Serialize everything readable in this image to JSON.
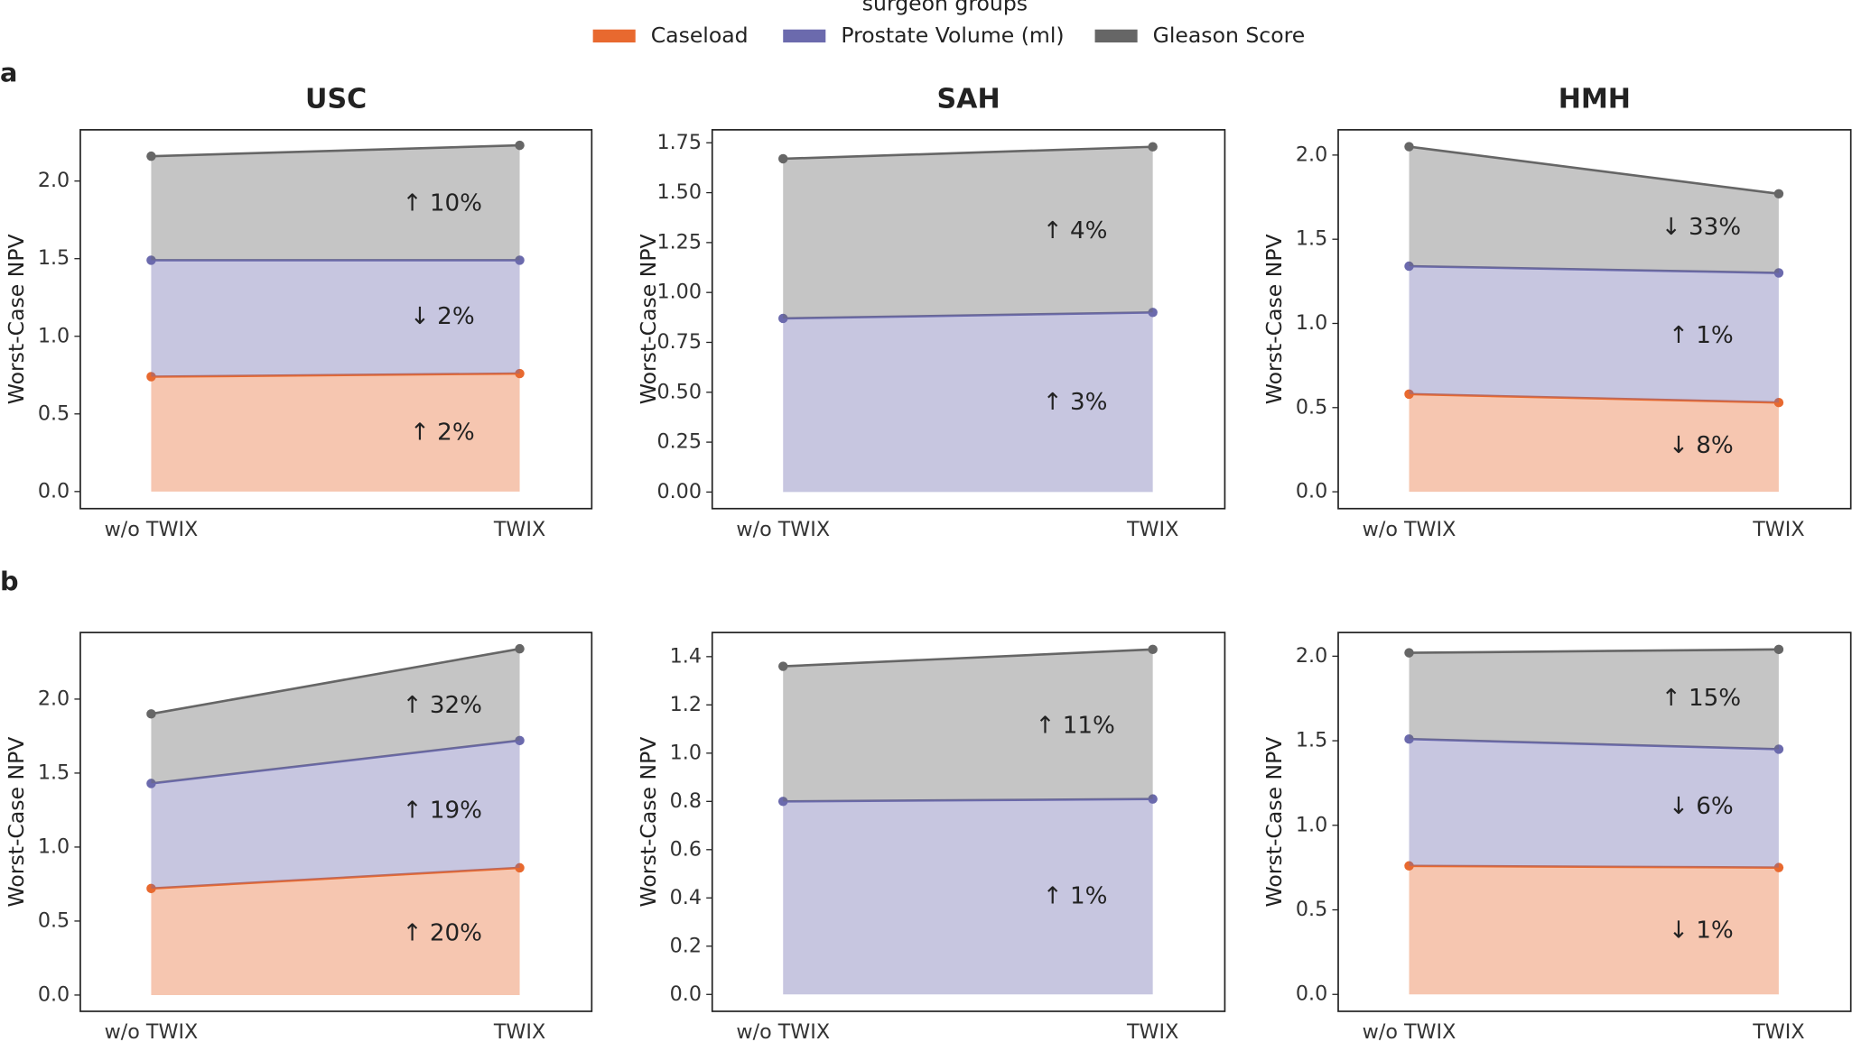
{
  "legend_title": "surgeon groups",
  "panel_labels": [
    "a",
    "b"
  ],
  "chart_data": [
    {
      "type": "area",
      "title": "USC",
      "ylabel": "Worst-Case NPV",
      "categories": [
        "w/o TWIX",
        "TWIX"
      ],
      "ylim": [
        -0.11,
        2.33
      ],
      "yticks": [
        {
          "value": 0,
          "label": "0.0"
        },
        0.5,
        {
          "value": 1,
          "label": "1.0"
        },
        1.5,
        {
          "value": 2,
          "label": "2.0"
        }
      ],
      "series": [
        {
          "name": "Caseload",
          "color": "#e8692f",
          "values": [
            0.74,
            0.76
          ],
          "label": "↑ 2%"
        },
        {
          "name": "Prostate Volume (ml)",
          "color": "#6b6aad",
          "values": [
            0.75,
            0.73
          ],
          "label": "↓ 2%"
        },
        {
          "name": "Gleason Score",
          "color": "#666666",
          "values": [
            0.67,
            0.74
          ],
          "label": "↑ 10%"
        }
      ]
    },
    {
      "type": "area",
      "title": "SAH",
      "ylabel": "Worst-Case NPV",
      "categories": [
        "w/o TWIX",
        "TWIX"
      ],
      "ylim": [
        -0.083,
        1.815
      ],
      "yticks": [
        {
          "value": 0,
          "label": "0.00"
        },
        0.25,
        {
          "value": 0.5,
          "label": "0.50"
        },
        0.75,
        {
          "value": 1,
          "label": "1.00"
        },
        1.25,
        {
          "value": 1.5,
          "label": "1.50"
        },
        1.75
      ],
      "series": [
        {
          "name": "Prostate Volume (ml)",
          "color": "#6b6aad",
          "values": [
            0.87,
            0.9
          ],
          "label": "↑ 3%"
        },
        {
          "name": "Gleason Score",
          "color": "#666666",
          "values": [
            0.8,
            0.83
          ],
          "label": "↑ 4%"
        }
      ]
    },
    {
      "type": "area",
      "title": "HMH",
      "ylabel": "Worst-Case NPV",
      "categories": [
        "w/o TWIX",
        "TWIX"
      ],
      "ylim": [
        -0.1,
        2.15
      ],
      "yticks": [
        {
          "value": 0,
          "label": "0.0"
        },
        0.5,
        {
          "value": 1,
          "label": "1.0"
        },
        1.5,
        {
          "value": 2,
          "label": "2.0"
        }
      ],
      "series": [
        {
          "name": "Caseload",
          "color": "#e8692f",
          "values": [
            0.58,
            0.53
          ],
          "label": "↓ 8%"
        },
        {
          "name": "Prostate Volume (ml)",
          "color": "#6b6aad",
          "values": [
            0.76,
            0.77
          ],
          "label": "↑ 1%"
        },
        {
          "name": "Gleason Score",
          "color": "#666666",
          "values": [
            0.71,
            0.47
          ],
          "label": "↓ 33%"
        }
      ]
    },
    {
      "type": "area",
      "ylabel": "Worst-Case NPV",
      "categories": [
        "w/o TWIX",
        "TWIX"
      ],
      "ylim": [
        -0.11,
        2.45
      ],
      "yticks": [
        {
          "value": 0,
          "label": "0.0"
        },
        0.5,
        {
          "value": 1,
          "label": "1.0"
        },
        1.5,
        {
          "value": 2,
          "label": "2.0"
        }
      ],
      "series": [
        {
          "name": "Caseload",
          "color": "#e8692f",
          "values": [
            0.72,
            0.86
          ],
          "label": "↑ 20%"
        },
        {
          "name": "Prostate Volume (ml)",
          "color": "#6b6aad",
          "values": [
            0.71,
            0.86
          ],
          "label": "↑ 19%"
        },
        {
          "name": "Gleason Score",
          "color": "#666666",
          "values": [
            0.47,
            0.62
          ],
          "label": "↑ 32%"
        }
      ]
    },
    {
      "type": "area",
      "ylabel": "Worst-Case NPV",
      "categories": [
        "w/o TWIX",
        "TWIX"
      ],
      "ylim": [
        -0.07,
        1.5
      ],
      "yticks": [
        {
          "value": 0,
          "label": "0.0"
        },
        0.2,
        0.4,
        0.6,
        0.8,
        {
          "value": 1,
          "label": "1.0"
        },
        1.2,
        1.4
      ],
      "series": [
        {
          "name": "Prostate Volume (ml)",
          "color": "#6b6aad",
          "values": [
            0.8,
            0.81
          ],
          "label": "↑ 1%"
        },
        {
          "name": "Gleason Score",
          "color": "#666666",
          "values": [
            0.56,
            0.62
          ],
          "label": "↑ 11%"
        }
      ]
    },
    {
      "type": "area",
      "ylabel": "Worst-Case NPV",
      "categories": [
        "w/o TWIX",
        "TWIX"
      ],
      "ylim": [
        -0.1,
        2.14
      ],
      "yticks": [
        {
          "value": 0,
          "label": "0.0"
        },
        0.5,
        {
          "value": 1,
          "label": "1.0"
        },
        1.5,
        {
          "value": 2,
          "label": "2.0"
        }
      ],
      "series": [
        {
          "name": "Caseload",
          "color": "#e8692f",
          "values": [
            0.76,
            0.75
          ],
          "label": "↓ 1%"
        },
        {
          "name": "Prostate Volume (ml)",
          "color": "#6b6aad",
          "values": [
            0.75,
            0.7
          ],
          "label": "↓ 6%"
        },
        {
          "name": "Gleason Score",
          "color": "#666666",
          "values": [
            0.51,
            0.59
          ],
          "label": "↑ 15%"
        }
      ]
    }
  ]
}
